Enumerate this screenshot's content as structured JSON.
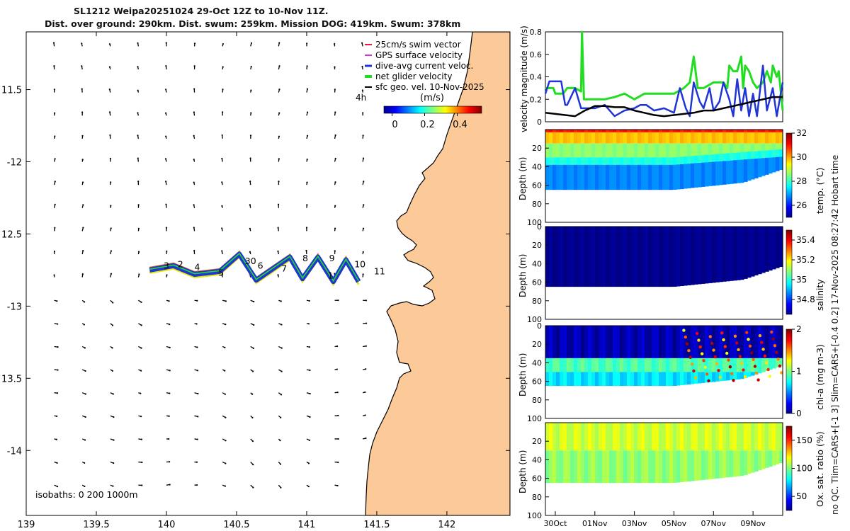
{
  "chart_data": {
    "type": "composite",
    "title_line1": "SL1212 Weipa20251024 29-Oct 12Z to 10-Nov 11Z.",
    "title_line2": "Dist. over ground: 290km. Dist. swum: 259km. Mission DOG: 419km. Swum: 378km",
    "side_caption": "no QC. Tlim=CARS+[-1 3] Slim=CARS+[-0.4 0.2] 17-Nov-2025 08:27:42 Hobart time",
    "map": {
      "xlim": [
        139,
        142.45
      ],
      "ylim": [
        -14.45,
        -11.1
      ],
      "x_ticks": [
        139,
        139.5,
        140,
        140.5,
        141,
        141.5,
        142
      ],
      "x_tick_labels": [
        "139",
        "139.5",
        "140",
        "140.5",
        "141",
        "141.5",
        "142"
      ],
      "y_ticks": [
        -11.5,
        -12,
        -12.5,
        -13,
        -13.5,
        -14
      ],
      "y_tick_labels": [
        "11.5",
        "-12",
        "12.5",
        "-13",
        "13.5",
        "-14"
      ],
      "legend": [
        {
          "label": "25cm/s swim vector",
          "color": "#e6194b"
        },
        {
          "label": "GPS surface velocity",
          "color": "#d633d6"
        },
        {
          "label": "dive-avg current veloc.",
          "color": "#1f35d6"
        },
        {
          "label": "net glider velocity",
          "color": "#22dd22"
        },
        {
          "label": "sfc geo. vel. 10-Nov-2025",
          "color": "#000000"
        }
      ],
      "legend_note": "4h",
      "colorbar_label": "(m/s)",
      "colorbar_ticks": [
        0,
        0.2,
        0.4
      ],
      "colorbar_tick_labels": [
        "0",
        "0.2",
        "0.4"
      ],
      "colorbar_range": [
        -0.05,
        0.55
      ],
      "isobaths_note": "isobaths: 0   200  1000m",
      "track": [
        [
          139.88,
          -12.75
        ],
        [
          140.05,
          -12.72
        ],
        [
          140.2,
          -12.78
        ],
        [
          140.38,
          -12.76
        ],
        [
          140.52,
          -12.64
        ],
        [
          140.64,
          -12.82
        ],
        [
          140.79,
          -12.72
        ],
        [
          140.88,
          -12.66
        ],
        [
          140.97,
          -12.81
        ],
        [
          141.08,
          -12.66
        ],
        [
          141.19,
          -12.83
        ],
        [
          141.28,
          -12.68
        ],
        [
          141.37,
          -12.83
        ]
      ],
      "day_labels": [
        {
          "text": "3",
          "lon": 140.0,
          "lat": -12.74
        },
        {
          "text": "2",
          "lon": 140.1,
          "lat": -12.73
        },
        {
          "text": "4",
          "lon": 140.22,
          "lat": -12.75
        },
        {
          "text": "5",
          "lon": 140.39,
          "lat": -12.79
        },
        {
          "text": "30",
          "lon": 140.6,
          "lat": -12.71
        },
        {
          "text": "6",
          "lon": 140.67,
          "lat": -12.74
        },
        {
          "text": "7",
          "lon": 140.84,
          "lat": -12.76
        },
        {
          "text": "8",
          "lon": 140.99,
          "lat": -12.69
        },
        {
          "text": "9",
          "lon": 141.18,
          "lat": -12.69
        },
        {
          "text": "1",
          "lon": 141.17,
          "lat": -12.81
        },
        {
          "text": "10",
          "lon": 141.38,
          "lat": -12.73
        },
        {
          "text": "11",
          "lon": 141.52,
          "lat": -12.78
        }
      ]
    },
    "velocity_panel": {
      "ylabel": "velocity magnitude (m/s)",
      "ylim": [
        0,
        0.8
      ],
      "y_ticks": [
        0,
        0.2,
        0.4,
        0.6,
        0.8
      ],
      "y_tick_labels": [
        "0",
        "0.2",
        "0.4",
        "0.6",
        "0.8"
      ],
      "xlim": [
        29.5,
        41.5
      ],
      "series": [
        {
          "name": "net glider velocity",
          "color": "#22dd22",
          "t": [
            29.5,
            29.9,
            30.0,
            30.4,
            30.6,
            31.0,
            31.3,
            31.35,
            31.45,
            31.8,
            32.5,
            33.0,
            33.5,
            34.0,
            34.5,
            35.0,
            35.5,
            36.0,
            36.5,
            36.8,
            37.0,
            37.2,
            37.5,
            38.0,
            38.5,
            38.7,
            38.8,
            39.0,
            39.2,
            39.4,
            39.5,
            39.6,
            39.8,
            40.0,
            40.2,
            40.5,
            40.7,
            40.9,
            41.0,
            41.2,
            41.3,
            41.5
          ],
          "v": [
            0.3,
            0.3,
            0.25,
            0.25,
            0.3,
            0.3,
            0.27,
            0.8,
            0.2,
            0.2,
            0.2,
            0.22,
            0.25,
            0.2,
            0.25,
            0.25,
            0.25,
            0.25,
            0.3,
            0.35,
            0.58,
            0.3,
            0.3,
            0.35,
            0.35,
            0.3,
            0.5,
            0.45,
            0.45,
            0.58,
            0.3,
            0.5,
            0.45,
            0.35,
            0.3,
            0.35,
            0.45,
            0.35,
            0.5,
            0.4,
            0.45,
            0.1
          ]
        },
        {
          "name": "dive-avg current veloc.",
          "color": "#1f35d6",
          "t": [
            29.5,
            29.7,
            30.0,
            30.3,
            30.5,
            30.6,
            31.0,
            31.3,
            31.5,
            32.0,
            32.5,
            33.0,
            33.5,
            34.0,
            34.3,
            34.6,
            35.0,
            35.5,
            36.0,
            36.3,
            36.6,
            36.8,
            37.0,
            37.3,
            37.5,
            37.8,
            38.0,
            38.3,
            38.5,
            38.8,
            39.0,
            39.2,
            39.4,
            39.6,
            39.8,
            40.0,
            40.2,
            40.5,
            40.7,
            41.0,
            41.2,
            41.5
          ],
          "v": [
            0.25,
            0.36,
            0.36,
            0.36,
            0.15,
            0.15,
            0.3,
            0.12,
            0.12,
            0.12,
            0.15,
            0.05,
            0.1,
            0.12,
            0.15,
            0.15,
            0.1,
            0.12,
            0.08,
            0.3,
            0.12,
            0.05,
            0.35,
            0.18,
            0.12,
            0.3,
            0.1,
            0.18,
            0.35,
            0.2,
            0.05,
            0.38,
            0.1,
            0.3,
            0.05,
            0.25,
            0.05,
            0.5,
            0.1,
            0.3,
            0.05,
            0.35
          ]
        },
        {
          "name": "sfc geo. vel.",
          "color": "#000000",
          "t": [
            29.5,
            30.0,
            30.5,
            31.0,
            31.5,
            32.0,
            32.5,
            33.0,
            33.5,
            34.0,
            34.5,
            35.0,
            35.5,
            36.0,
            36.5,
            37.0,
            37.5,
            38.0,
            38.5,
            39.0,
            39.5,
            40.0,
            40.5,
            41.0,
            41.5
          ],
          "v": [
            0.08,
            0.07,
            0.06,
            0.05,
            0.1,
            0.14,
            0.14,
            0.13,
            0.13,
            0.1,
            0.08,
            0.06,
            0.05,
            0.06,
            0.07,
            0.08,
            0.1,
            0.1,
            0.12,
            0.14,
            0.16,
            0.18,
            0.2,
            0.22,
            0.22
          ]
        }
      ]
    },
    "section_panels": [
      {
        "name": "temperature",
        "cbar_label": "temp. (°C)",
        "depth_label": "Depth (m)",
        "cbar_range": [
          25,
          32
        ],
        "cbar_ticks": [
          26,
          28,
          30,
          32
        ],
        "cbar_tick_labels": [
          "26",
          "28",
          "30",
          "32"
        ],
        "y_ticks": [
          20,
          40,
          60,
          80,
          100
        ],
        "y_tick_labels": [
          "20",
          "40",
          "60",
          "80",
          "100"
        ],
        "layers": [
          {
            "from": 0,
            "to": 3,
            "value": 31.0
          },
          {
            "from": 3,
            "to": 15,
            "value": 29.8
          },
          {
            "from": 15,
            "to": 30,
            "value": 28.6
          },
          {
            "from": 30,
            "to": 38,
            "value": 27.8
          },
          {
            "from": 38,
            "to": 70,
            "value": 26.8
          }
        ]
      },
      {
        "name": "salinity",
        "cbar_label": "salinity",
        "depth_label": "Depth (m)",
        "cbar_range": [
          34.65,
          35.5
        ],
        "cbar_ticks": [
          34.8,
          35,
          35.2,
          35.4
        ],
        "cbar_tick_labels": [
          "34.8",
          "35",
          "35.2",
          "35.4"
        ],
        "y_ticks": [
          0,
          20,
          40,
          60,
          80,
          100
        ],
        "y_tick_labels": [
          "0",
          "20",
          "40",
          "60",
          "80",
          "100"
        ],
        "layers": [
          {
            "from": 0,
            "to": 70,
            "value": 34.66
          }
        ]
      },
      {
        "name": "chlorophyll",
        "cbar_label": "chl-a (mg m-3)",
        "depth_label": "Depth (m)",
        "cbar_range": [
          0,
          2
        ],
        "cbar_ticks": [
          0,
          1,
          2
        ],
        "cbar_tick_labels": [
          "0",
          "1",
          "2"
        ],
        "y_ticks": [
          0,
          20,
          40,
          60,
          80,
          100
        ],
        "y_tick_labels": [
          "0",
          "20",
          "40",
          "60",
          "80",
          "100"
        ],
        "layers": [
          {
            "from": 0,
            "to": 35,
            "value": 0.1
          },
          {
            "from": 35,
            "to": 50,
            "value": 0.9
          },
          {
            "from": 50,
            "to": 70,
            "value": 0.7
          }
        ]
      },
      {
        "name": "oxygen",
        "cbar_label": "Ox. sat. ratio (%)",
        "depth_label": "Depth (m)",
        "cbar_range": [
          25,
          175
        ],
        "cbar_ticks": [
          50,
          100,
          150
        ],
        "cbar_tick_labels": [
          "50",
          "100",
          "150"
        ],
        "y_ticks": [
          20,
          40,
          60,
          80,
          100
        ],
        "y_tick_labels": [
          "20",
          "40",
          "60",
          "80",
          "100"
        ],
        "layers": [
          {
            "from": 0,
            "to": 30,
            "value": 112
          },
          {
            "from": 30,
            "to": 70,
            "value": 103
          }
        ]
      }
    ],
    "time_axis": {
      "ticks": [
        30,
        32,
        34,
        36,
        38,
        40
      ],
      "tick_labels": [
        "30Oct",
        "01Nov",
        "03Nov",
        "05Nov",
        "07Nov",
        "09Nov"
      ]
    }
  }
}
